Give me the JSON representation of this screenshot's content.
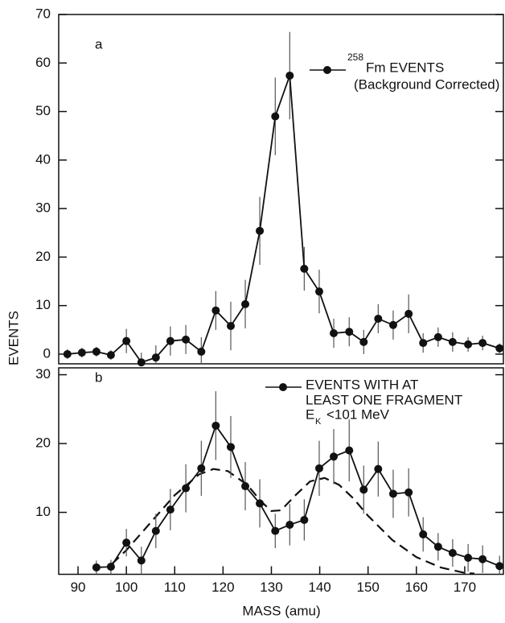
{
  "chart_data": [
    {
      "type": "line",
      "panel": "a",
      "ylabel": "EVENTS",
      "xlim": [
        86,
        178
      ],
      "ylim": [
        -2,
        70
      ],
      "yticks": [
        0,
        10,
        20,
        30,
        40,
        50,
        60,
        70
      ],
      "series": [
        {
          "name": "Fm EVENTS",
          "name_sup": "258",
          "name_note": "(Background Corrected)",
          "color": "#111",
          "x": [
            87.8,
            90.8,
            93.8,
            96.8,
            100.0,
            103.1,
            106.1,
            109.1,
            112.3,
            115.5,
            118.5,
            121.6,
            124.6,
            127.6,
            130.8,
            133.8,
            136.8,
            139.9,
            142.9,
            146.1,
            149.1,
            152.1,
            155.2,
            158.4,
            161.4,
            164.5,
            167.5,
            170.7,
            173.7,
            177.2
          ],
          "values": [
            0,
            0.3,
            0.5,
            -0.2,
            2.7,
            -1.7,
            -0.7,
            2.7,
            3,
            0.5,
            9,
            5.8,
            10.3,
            25.4,
            49,
            57.4,
            17.6,
            12.9,
            4.3,
            4.6,
            2.5,
            7.3,
            6,
            8.3,
            2.3,
            3.5,
            2.5,
            2,
            2.3,
            1.2
          ],
          "errors": [
            1,
            1,
            1,
            1,
            2.5,
            2,
            2.5,
            3,
            3,
            3,
            4,
            5,
            5,
            7,
            8,
            9,
            4.5,
            4.5,
            3,
            3,
            2.5,
            3,
            3,
            4,
            2,
            2,
            2,
            1.5,
            1.5,
            1
          ]
        }
      ]
    },
    {
      "type": "line",
      "panel": "b",
      "xlabel": "MASS (amu)",
      "xlim": [
        86,
        178
      ],
      "ylim": [
        1,
        31
      ],
      "yticks": [
        10,
        20,
        30
      ],
      "xticks": [
        90,
        100,
        110,
        120,
        130,
        140,
        150,
        160,
        170
      ],
      "series": [
        {
          "name": [
            "EVENTS WITH AT",
            "LEAST ONE FRAGMENT"
          ],
          "condition": {
            "text": "E",
            "sub": "K",
            "rest": "<101 MeV"
          },
          "color": "#111",
          "x": [
            93.8,
            96.8,
            100.0,
            103.1,
            106.1,
            109.1,
            112.3,
            115.5,
            118.5,
            121.6,
            124.6,
            127.6,
            130.8,
            133.8,
            136.8,
            139.9,
            142.9,
            146.1,
            149.1,
            152.1,
            155.2,
            158.4,
            161.4,
            164.5,
            167.5,
            170.7,
            173.7,
            177.2
          ],
          "values": [
            2,
            2.1,
            5.6,
            3,
            7.3,
            10.4,
            13.5,
            16.4,
            22.6,
            19.5,
            13.8,
            11.3,
            7.3,
            8.2,
            8.9,
            16.4,
            18.1,
            19,
            13.3,
            16.3,
            12.7,
            12.9,
            6.8,
            5,
            4.1,
            3.4,
            3.2,
            2.2
          ],
          "errors": [
            1,
            1,
            2,
            2,
            2.5,
            3,
            3.5,
            4,
            5,
            4.5,
            3.5,
            3.5,
            2.5,
            3,
            3,
            4,
            4,
            4.5,
            3.5,
            4,
            3.5,
            3.5,
            2.5,
            2,
            2,
            2,
            2,
            1.5
          ]
        }
      ],
      "curve": {
        "dashed": true,
        "x": [
          97,
          100,
          105,
          110,
          115,
          118,
          121,
          125,
          128,
          130,
          132,
          135,
          138,
          141,
          144,
          147,
          150,
          155,
          160,
          165,
          170,
          172
        ],
        "values": [
          2.5,
          4.5,
          8.5,
          12.5,
          15.5,
          16.3,
          16,
          14,
          11.5,
          10.2,
          10.3,
          12.5,
          14.5,
          15,
          14,
          12,
          9.5,
          6,
          3.5,
          2,
          1.2,
          1.1
        ]
      }
    }
  ]
}
